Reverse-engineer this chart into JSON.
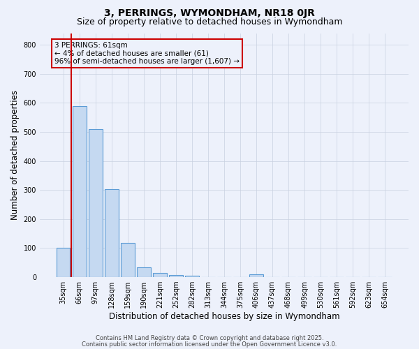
{
  "title1": "3, PERRINGS, WYMONDHAM, NR18 0JR",
  "title2": "Size of property relative to detached houses in Wymondham",
  "xlabel": "Distribution of detached houses by size in Wymondham",
  "ylabel": "Number of detached properties",
  "categories": [
    "35sqm",
    "66sqm",
    "97sqm",
    "128sqm",
    "159sqm",
    "190sqm",
    "221sqm",
    "252sqm",
    "282sqm",
    "313sqm",
    "344sqm",
    "375sqm",
    "406sqm",
    "437sqm",
    "468sqm",
    "499sqm",
    "530sqm",
    "561sqm",
    "592sqm",
    "623sqm",
    "654sqm"
  ],
  "values": [
    100,
    590,
    510,
    303,
    118,
    35,
    15,
    8,
    5,
    0,
    0,
    0,
    10,
    0,
    0,
    0,
    0,
    0,
    0,
    0,
    0
  ],
  "bar_color": "#c5d9f1",
  "bar_edge_color": "#5b9bd5",
  "bar_width": 0.85,
  "vline_color": "#cc0000",
  "vline_x": -0.5,
  "annotation_text": "3 PERRINGS: 61sqm\n← 4% of detached houses are smaller (61)\n96% of semi-detached houses are larger (1,607) →",
  "annotation_box_color": "#cc0000",
  "ylim": [
    0,
    840
  ],
  "yticks": [
    0,
    100,
    200,
    300,
    400,
    500,
    600,
    700,
    800
  ],
  "grid_color": "#c8d0e0",
  "background_color": "#edf1fb",
  "footer1": "Contains HM Land Registry data © Crown copyright and database right 2025.",
  "footer2": "Contains public sector information licensed under the Open Government Licence v3.0.",
  "title_fontsize": 10,
  "subtitle_fontsize": 9,
  "tick_fontsize": 7,
  "label_fontsize": 8.5,
  "annotation_fontsize": 7.5,
  "footer_fontsize": 6
}
